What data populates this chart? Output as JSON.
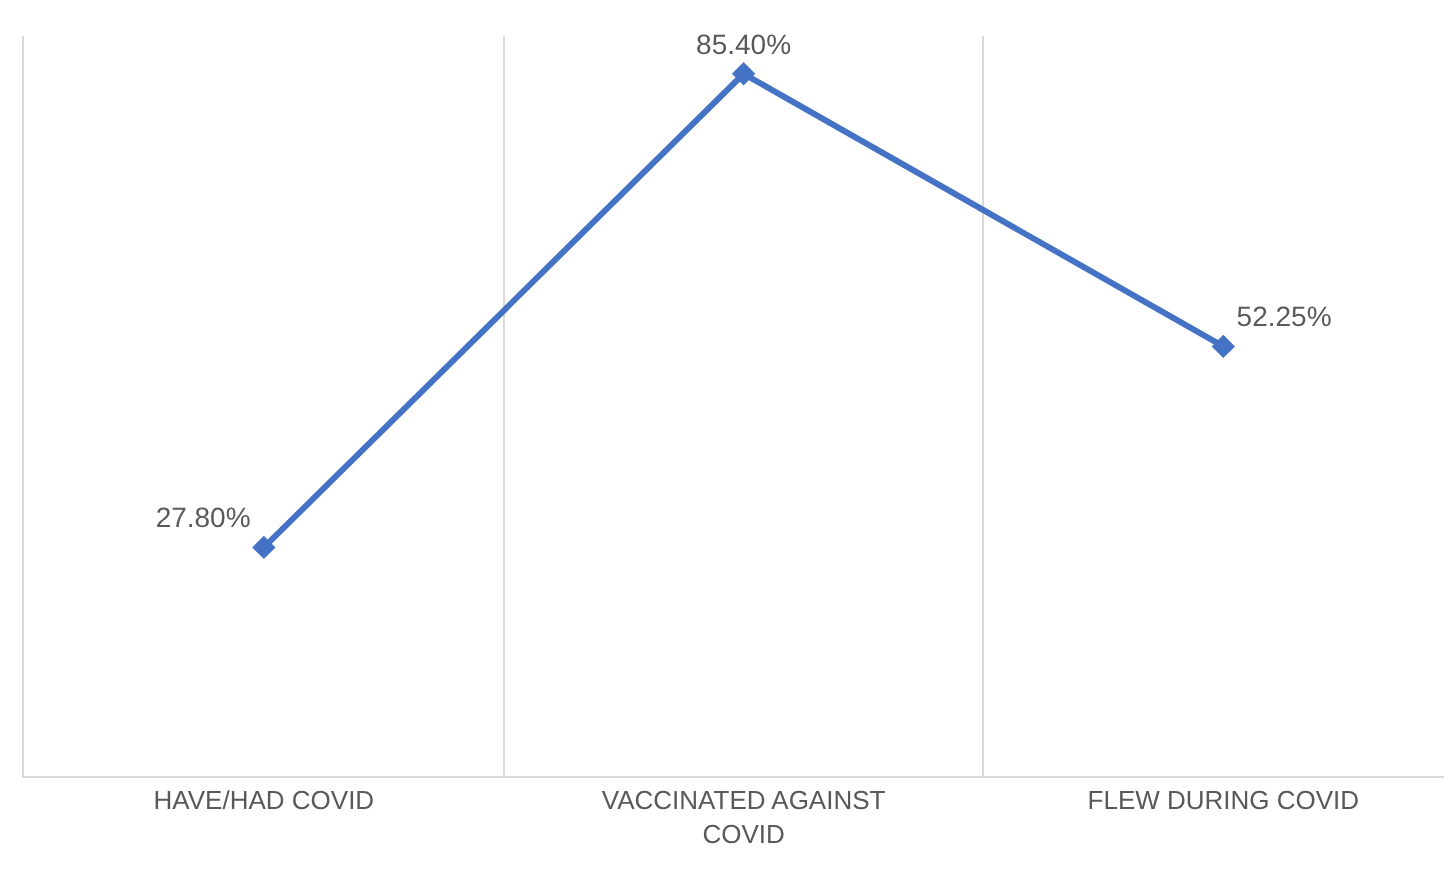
{
  "chart_data": {
    "type": "line",
    "categories": [
      "HAVE/HAD COVID",
      "VACCINATED AGAINST COVID",
      "FLEW DURING COVID"
    ],
    "series": [
      {
        "color": "#4472c4",
        "values": [
          27.8,
          85.4,
          52.25
        ],
        "value_labels": [
          "27.80%",
          "85.40%",
          "52.25%"
        ]
      }
    ],
    "ylim": [
      0,
      90
    ],
    "tick_labels": "x",
    "grid": "x",
    "marker": "diamond",
    "line_style": "solid",
    "legend": false
  }
}
